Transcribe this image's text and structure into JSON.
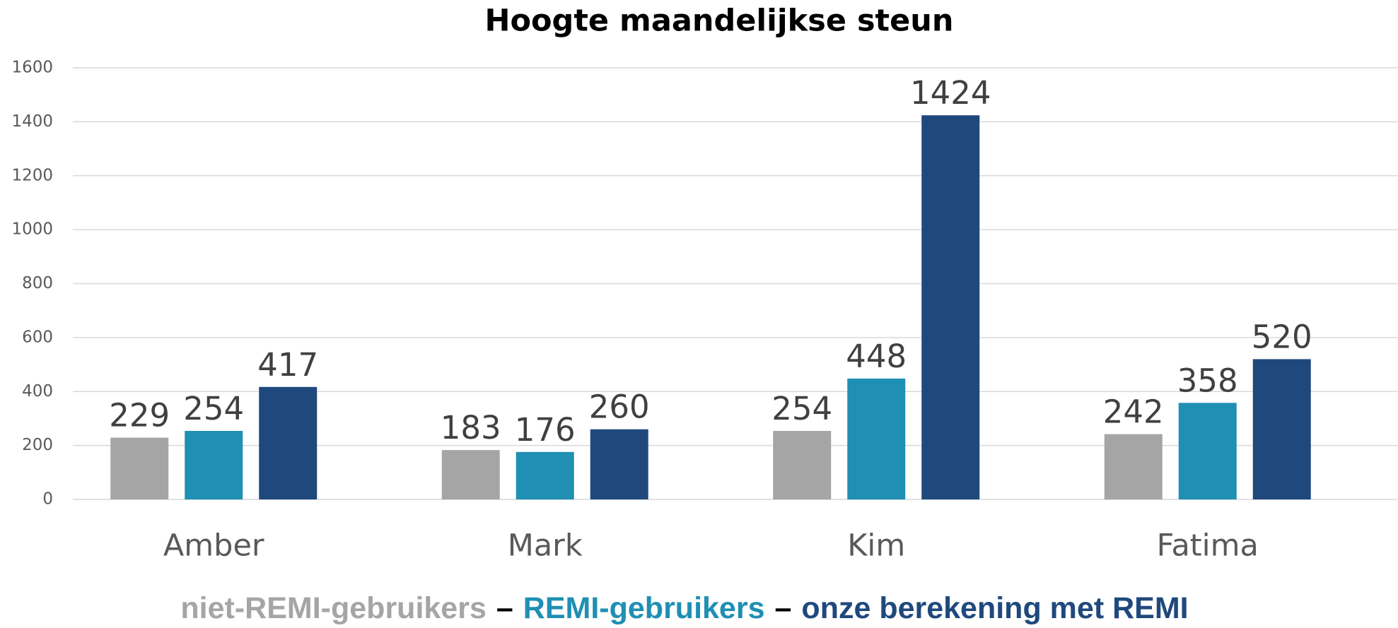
{
  "chart_data": {
    "type": "bar",
    "title": "Hoogte maandelijkse steun",
    "categories": [
      "Amber",
      "Mark",
      "Kim",
      "Fatima"
    ],
    "series": [
      {
        "name": "niet-REMI-gebruikers",
        "color": "#a5a5a5",
        "values": [
          229,
          183,
          254,
          242
        ]
      },
      {
        "name": "REMI-gebruikers",
        "color": "#1f8fb3",
        "values": [
          254,
          176,
          448,
          358
        ]
      },
      {
        "name": "onze berekening met REMI",
        "color": "#1f497d",
        "values": [
          417,
          260,
          1424,
          520
        ]
      }
    ],
    "legend_separator": "–",
    "ylim": [
      0,
      1600
    ],
    "yticks": [
      0,
      200,
      400,
      600,
      800,
      1000,
      1200,
      1400,
      1600
    ],
    "grid": true
  }
}
